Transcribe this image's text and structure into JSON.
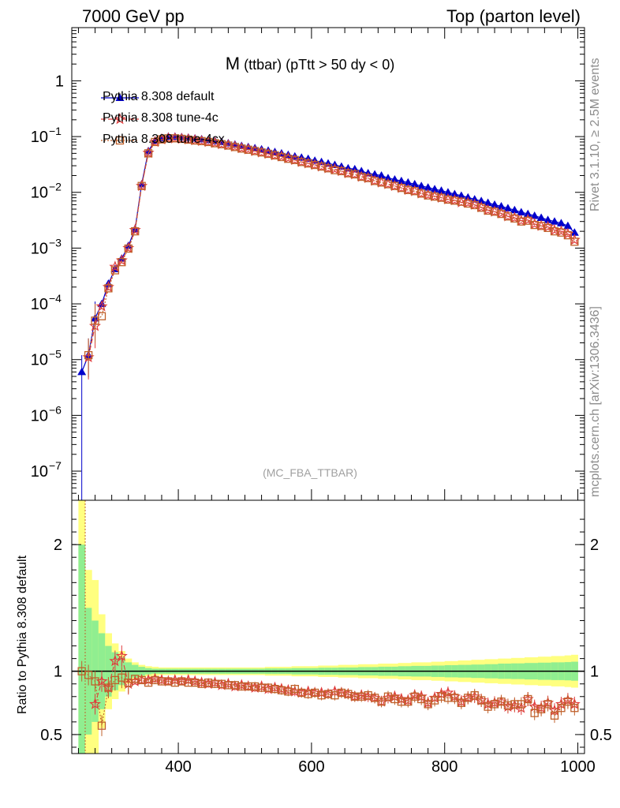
{
  "header": {
    "left": "7000 GeV pp",
    "right": "Top (parton level)"
  },
  "plot_title": {
    "main": "M",
    "sub": "(ttbar) (pTtt > 50 dy < 0)"
  },
  "side_labels": {
    "rivet": "Rivet 3.1.10, ≥ 2.5M events",
    "mcplots": "mcplots.cern.ch [arXiv:1306.3436]"
  },
  "analysis_tag": "(MC_FBA_TTBAR)",
  "ratio_ylabel": "Ratio to Pythia 8.308 default",
  "colors": {
    "default": "#0000cc",
    "tune4c": "#e03c3c",
    "tune4cx": "#c0612b",
    "band_inner": "#90ee90",
    "band_outer": "#ffff80"
  },
  "chart_data": [
    {
      "type": "line",
      "panel": "main",
      "scale_y": "log",
      "xlim": [
        240,
        1010
      ],
      "ylim": [
        3e-08,
        9
      ],
      "y_ticks": [
        {
          "v": 1e-07,
          "base": "10",
          "exp": "−7"
        },
        {
          "v": 1e-06,
          "base": "10",
          "exp": "−6"
        },
        {
          "v": 1e-05,
          "base": "10",
          "exp": "−5"
        },
        {
          "v": 0.0001,
          "base": "10",
          "exp": "−4"
        },
        {
          "v": 0.001,
          "base": "10",
          "exp": "−3"
        },
        {
          "v": 0.01,
          "base": "10",
          "exp": "−2"
        },
        {
          "v": 0.1,
          "base": "10",
          "exp": "−1"
        },
        {
          "v": 1,
          "base": "1",
          "exp": ""
        }
      ],
      "x": [
        255,
        265,
        275,
        285,
        295,
        305,
        315,
        325,
        335,
        345,
        355,
        365,
        375,
        385,
        395,
        405,
        415,
        425,
        435,
        445,
        455,
        465,
        475,
        485,
        495,
        505,
        515,
        525,
        535,
        545,
        555,
        565,
        575,
        585,
        595,
        605,
        615,
        625,
        635,
        645,
        655,
        665,
        675,
        685,
        695,
        705,
        715,
        725,
        735,
        745,
        755,
        765,
        775,
        785,
        795,
        805,
        815,
        825,
        835,
        845,
        855,
        865,
        875,
        885,
        895,
        905,
        915,
        925,
        935,
        945,
        955,
        965,
        975,
        985,
        995
      ],
      "series": [
        {
          "name": "Pythia 8.308 default",
          "marker": "triangle",
          "values": [
            6e-06,
            1.2e-05,
            5.5e-05,
            0.0001,
            0.00023,
            0.00042,
            0.00065,
            0.0011,
            0.0022,
            0.014,
            0.055,
            0.085,
            0.095,
            0.1,
            0.1,
            0.098,
            0.096,
            0.093,
            0.09,
            0.087,
            0.083,
            0.08,
            0.076,
            0.072,
            0.068,
            0.065,
            0.062,
            0.059,
            0.056,
            0.053,
            0.05,
            0.047,
            0.044,
            0.042,
            0.04,
            0.037,
            0.035,
            0.033,
            0.031,
            0.029,
            0.027,
            0.026,
            0.024,
            0.022,
            0.021,
            0.02,
            0.018,
            0.017,
            0.016,
            0.015,
            0.014,
            0.013,
            0.0122,
            0.0114,
            0.0107,
            0.01,
            0.0093,
            0.0087,
            0.0081,
            0.0075,
            0.007,
            0.0065,
            0.006,
            0.0056,
            0.0052,
            0.0048,
            0.0044,
            0.0041,
            0.0038,
            0.0035,
            0.0032,
            0.003,
            0.0028,
            0.0025,
            0.0019
          ]
        },
        {
          "name": "Pythia 8.308 tune-4c",
          "marker": "star",
          "values": [
            null,
            1.1e-05,
            4e-05,
            9e-05,
            0.0002,
            0.00046,
            0.0006,
            0.001,
            0.0021,
            0.013,
            0.051,
            0.08,
            0.089,
            0.093,
            0.093,
            0.091,
            0.089,
            0.086,
            0.083,
            0.08,
            0.077,
            0.073,
            0.07,
            0.066,
            0.062,
            0.059,
            0.055,
            0.052,
            0.049,
            0.046,
            0.044,
            0.041,
            0.038,
            0.035,
            0.033,
            0.031,
            0.029,
            0.027,
            0.026,
            0.024,
            0.022,
            0.021,
            0.019,
            0.018,
            0.016,
            0.015,
            0.014,
            0.013,
            0.012,
            0.011,
            0.0105,
            0.0095,
            0.009,
            0.0085,
            0.008,
            0.0075,
            0.0072,
            0.0066,
            0.0065,
            0.006,
            0.0054,
            0.0048,
            0.0045,
            0.0042,
            0.0037,
            0.0035,
            0.0031,
            0.0032,
            0.0027,
            0.0025,
            0.0024,
            0.0021,
            0.002,
            0.0018,
            0.0014
          ]
        },
        {
          "name": "Pythia 8.308 tune-4cx",
          "marker": "square",
          "values": [
            null,
            1.2e-05,
            5e-05,
            6e-05,
            0.00019,
            0.0004,
            0.00056,
            0.00098,
            0.002,
            0.013,
            0.05,
            0.08,
            0.089,
            0.093,
            0.093,
            0.091,
            0.088,
            0.085,
            0.083,
            0.08,
            0.076,
            0.073,
            0.069,
            0.065,
            0.061,
            0.058,
            0.055,
            0.052,
            0.049,
            0.046,
            0.043,
            0.04,
            0.038,
            0.035,
            0.033,
            0.031,
            0.029,
            0.027,
            0.025,
            0.024,
            0.022,
            0.021,
            0.019,
            0.018,
            0.016,
            0.015,
            0.014,
            0.013,
            0.012,
            0.011,
            0.0105,
            0.0095,
            0.0088,
            0.0084,
            0.008,
            0.0074,
            0.0071,
            0.0068,
            0.0063,
            0.0059,
            0.0053,
            0.0047,
            0.0045,
            0.0041,
            0.0037,
            0.0034,
            0.003,
            0.0031,
            0.0026,
            0.0025,
            0.0023,
            0.002,
            0.0019,
            0.0017,
            0.0013
          ]
        }
      ]
    },
    {
      "type": "line",
      "panel": "ratio",
      "xlim": [
        240,
        1010
      ],
      "ylim": [
        0.35,
        2.35
      ],
      "x_ticks": [
        400,
        600,
        800,
        1000
      ],
      "y_ticks": [
        0.5,
        1,
        2
      ],
      "x": [
        255,
        265,
        275,
        285,
        295,
        305,
        315,
        325,
        335,
        345,
        355,
        365,
        375,
        385,
        395,
        405,
        415,
        425,
        435,
        445,
        455,
        465,
        475,
        485,
        495,
        505,
        515,
        525,
        535,
        545,
        555,
        565,
        575,
        585,
        595,
        605,
        615,
        625,
        635,
        645,
        655,
        665,
        675,
        685,
        695,
        705,
        715,
        725,
        735,
        745,
        755,
        765,
        775,
        785,
        795,
        805,
        815,
        825,
        835,
        845,
        855,
        865,
        875,
        885,
        895,
        905,
        915,
        925,
        935,
        945,
        955,
        965,
        975,
        985,
        995
      ],
      "band_outer": [
        1.35,
        0.8,
        0.72,
        0.45,
        0.3,
        0.22,
        0.16,
        0.1,
        0.07,
        0.05,
        0.04,
        0.035,
        0.03,
        0.03,
        0.03,
        0.03,
        0.03,
        0.03,
        0.03,
        0.03,
        0.03,
        0.03,
        0.03,
        0.03,
        0.03,
        0.03,
        0.03,
        0.03,
        0.035,
        0.035,
        0.035,
        0.035,
        0.04,
        0.04,
        0.04,
        0.04,
        0.045,
        0.045,
        0.045,
        0.05,
        0.05,
        0.05,
        0.055,
        0.055,
        0.055,
        0.06,
        0.06,
        0.06,
        0.065,
        0.065,
        0.07,
        0.07,
        0.07,
        0.075,
        0.075,
        0.08,
        0.08,
        0.085,
        0.085,
        0.09,
        0.09,
        0.095,
        0.095,
        0.1,
        0.1,
        0.105,
        0.105,
        0.11,
        0.11,
        0.115,
        0.115,
        0.12,
        0.12,
        0.125,
        0.13
      ],
      "band_inner": [
        1.0,
        0.5,
        0.4,
        0.3,
        0.2,
        0.15,
        0.11,
        0.07,
        0.05,
        0.035,
        0.025,
        0.02,
        0.02,
        0.02,
        0.02,
        0.02,
        0.02,
        0.02,
        0.02,
        0.02,
        0.02,
        0.02,
        0.02,
        0.02,
        0.02,
        0.02,
        0.02,
        0.02,
        0.022,
        0.022,
        0.022,
        0.022,
        0.025,
        0.025,
        0.025,
        0.025,
        0.028,
        0.028,
        0.028,
        0.03,
        0.03,
        0.03,
        0.033,
        0.033,
        0.033,
        0.036,
        0.036,
        0.036,
        0.04,
        0.04,
        0.042,
        0.042,
        0.042,
        0.045,
        0.045,
        0.048,
        0.048,
        0.05,
        0.05,
        0.053,
        0.053,
        0.056,
        0.056,
        0.06,
        0.06,
        0.062,
        0.062,
        0.065,
        0.065,
        0.068,
        0.068,
        0.07,
        0.07,
        0.072,
        0.075
      ],
      "series": [
        {
          "name": "Pythia 8.308 tune-4c",
          "marker": "star",
          "values": [
            null,
            null,
            0.74,
            0.92,
            0.87,
            1.08,
            1.12,
            0.9,
            0.92,
            0.93,
            0.93,
            0.94,
            0.93,
            0.92,
            0.93,
            0.92,
            0.93,
            0.92,
            0.91,
            0.9,
            0.91,
            0.89,
            0.9,
            0.88,
            0.89,
            0.88,
            0.87,
            0.88,
            0.86,
            0.87,
            0.86,
            0.85,
            0.84,
            0.83,
            0.84,
            0.83,
            0.83,
            0.82,
            0.84,
            0.83,
            0.82,
            0.8,
            0.81,
            0.8,
            0.79,
            0.76,
            0.79,
            0.8,
            0.78,
            0.77,
            0.81,
            0.8,
            0.75,
            0.79,
            0.82,
            0.83,
            0.8,
            0.76,
            0.79,
            0.8,
            0.77,
            0.74,
            0.75,
            0.76,
            0.72,
            0.73,
            0.71,
            0.78,
            0.72,
            0.71,
            0.75,
            0.69,
            0.74,
            0.77,
            0.74
          ]
        },
        {
          "name": "Pythia 8.308 tune-4cx",
          "marker": "square",
          "values": [
            1.0,
            0.97,
            0.92,
            0.57,
            0.87,
            0.93,
            0.95,
            0.91,
            0.94,
            0.93,
            0.91,
            0.93,
            0.92,
            0.92,
            0.91,
            0.92,
            0.91,
            0.91,
            0.9,
            0.91,
            0.9,
            0.9,
            0.89,
            0.89,
            0.88,
            0.88,
            0.88,
            0.87,
            0.87,
            0.86,
            0.85,
            0.84,
            0.86,
            0.83,
            0.82,
            0.83,
            0.81,
            0.82,
            0.81,
            0.83,
            0.82,
            0.8,
            0.8,
            0.81,
            0.79,
            0.76,
            0.8,
            0.78,
            0.76,
            0.76,
            0.8,
            0.78,
            0.74,
            0.77,
            0.8,
            0.79,
            0.79,
            0.75,
            0.79,
            0.81,
            0.77,
            0.72,
            0.74,
            0.76,
            0.73,
            0.74,
            0.74,
            0.78,
            0.67,
            0.7,
            0.74,
            0.65,
            0.71,
            0.76,
            0.71
          ]
        }
      ]
    }
  ]
}
